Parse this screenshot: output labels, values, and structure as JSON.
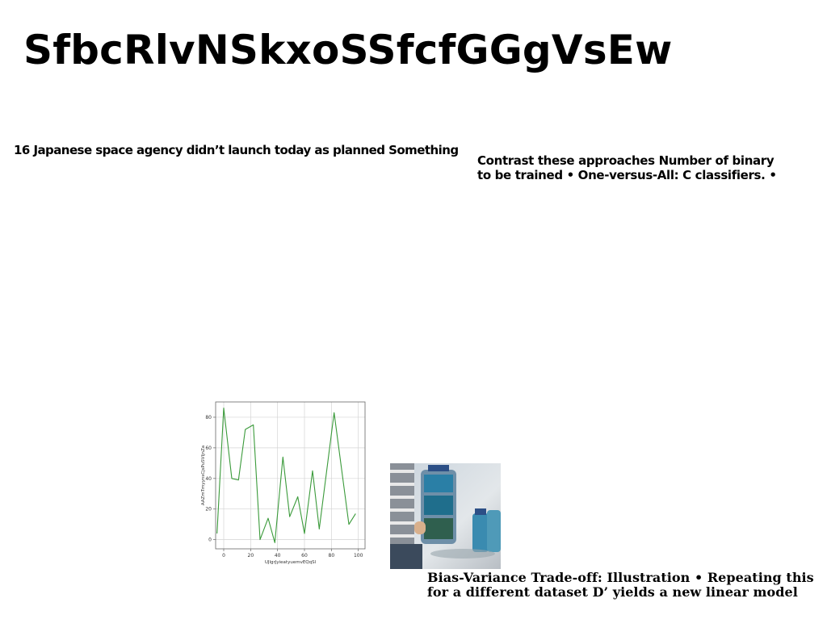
{
  "title": "SfbcRlvNSkxoSSfcfGGgVsEw",
  "text_block_1": "16 Japanese space agency didn’t launch today as planned Something",
  "text_block_2": {
    "line1": "Contrast these approaches Number of binary",
    "line2": "to be trained • One-versus-All: C classifiers. •"
  },
  "text_block_3": {
    "line1": "Bias-Variance Trade-off: Illustration • Repeating this",
    "line2": "for a different dataset D’ yields a new linear model"
  },
  "colors": {
    "line": "#3a9a3a",
    "grid": "#d4d4d4",
    "axis": "#666666"
  },
  "chart_data": {
    "type": "line",
    "xlabel": "UJlgrJyieatyuemvEQqSl",
    "ylabel": "AAZmTmyynsCjsPuSVljnZa",
    "xlim": [
      -6,
      105
    ],
    "ylim": [
      -6,
      90
    ],
    "x_ticks": [
      0,
      20,
      40,
      60,
      80,
      100
    ],
    "y_ticks": [
      0,
      20,
      40,
      60,
      80
    ],
    "grid": true,
    "series": [
      {
        "x": [
          -5,
          0,
          6,
          11,
          16,
          22,
          27,
          33,
          38,
          44,
          49,
          55,
          60,
          66,
          71,
          82,
          93,
          98
        ],
        "values": [
          4,
          86,
          40,
          39,
          72,
          75,
          0,
          14,
          -2,
          54,
          15,
          28,
          4,
          45,
          7,
          83,
          10,
          17
        ]
      }
    ]
  }
}
